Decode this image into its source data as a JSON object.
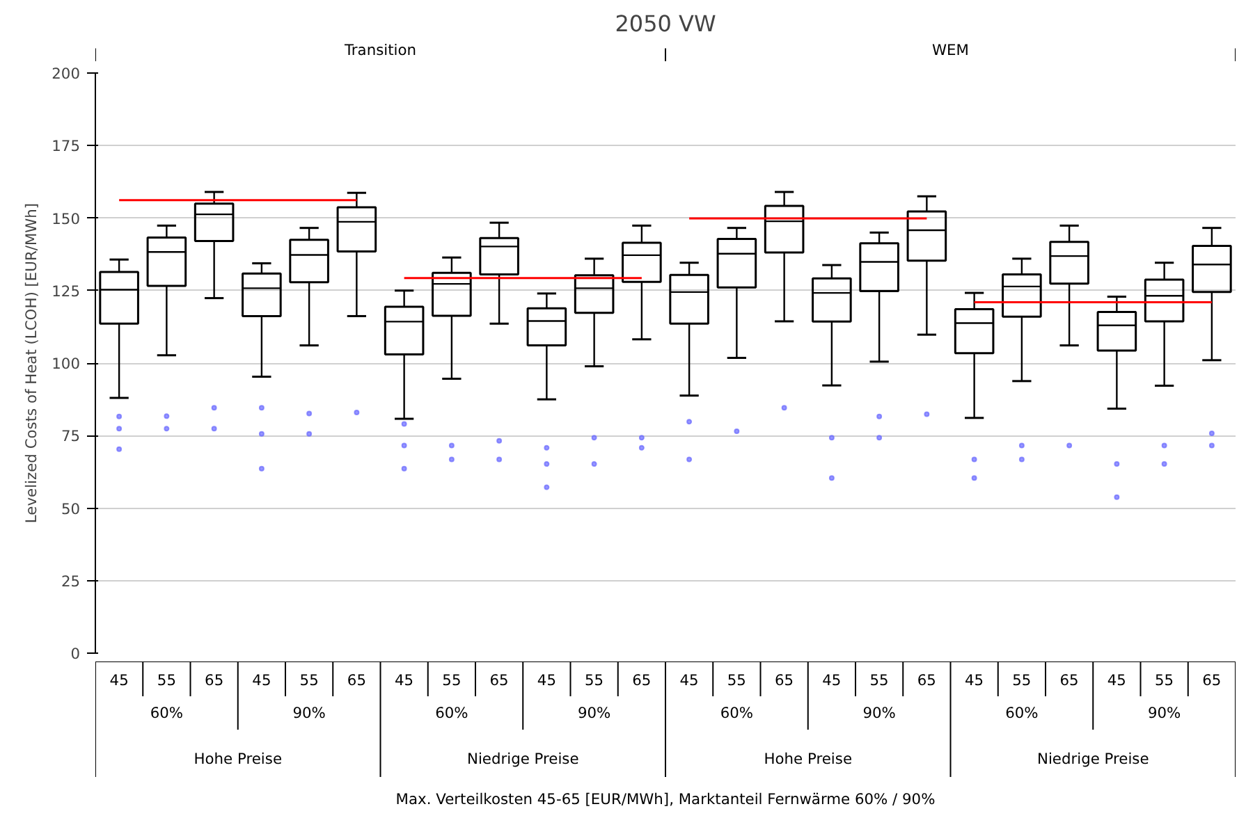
{
  "chart_data": {
    "type": "box",
    "title": "2050 VW",
    "ylabel": "Levelized Costs of Heat (LCOH) [EUR/MWh]",
    "categories": [
      "45",
      "55",
      "65",
      "45",
      "55",
      "65",
      "45",
      "55",
      "65",
      "45",
      "55",
      "65",
      "45",
      "55",
      "65",
      "45",
      "55",
      "65",
      "45",
      "55",
      "65",
      "45",
      "55",
      "65"
    ],
    "annotations": [
      "Transition",
      "WEM",
      "60%",
      "90%",
      "60%",
      "90%",
      "60%",
      "90%",
      "60%",
      "90%",
      "Hohe Preise",
      "Niedrige Preise",
      "Hohe Preise",
      "Niedrige Preise",
      "Max. Verteilkosten 45-65 [EUR/MWh], Marktanteil Fernwärme 60% / 90%"
    ],
    "ylim": [
      0,
      200
    ],
    "yticks": [
      0,
      25,
      50,
      75,
      100,
      125,
      150,
      175,
      200
    ],
    "grid": "y",
    "series": [
      {
        "color": "#000000",
        "boxes": [
          {
            "low": 88,
            "q1": 113.6,
            "median": 125.3,
            "q3": 131.4,
            "high": 135.7,
            "outliers": [
              81.6,
              77.4,
              70.3
            ]
          },
          {
            "low": 102.7,
            "q1": 126.6,
            "median": 138.3,
            "q3": 143.3,
            "high": 147.4,
            "outliers": [
              81.7,
              77.4
            ]
          },
          {
            "low": 122.4,
            "q1": 142.1,
            "median": 151.3,
            "q3": 155,
            "high": 159,
            "outliers": [
              84.6,
              77.4
            ]
          },
          {
            "low": 95.3,
            "q1": 116.2,
            "median": 125.8,
            "q3": 130.9,
            "high": 134.4,
            "outliers": [
              84.6,
              75.6,
              63.6
            ]
          },
          {
            "low": 106.1,
            "q1": 127.9,
            "median": 137.3,
            "q3": 142.5,
            "high": 146.6,
            "outliers": [
              82.6,
              75.6
            ]
          },
          {
            "low": 116.2,
            "q1": 138.5,
            "median": 148.7,
            "q3": 153.7,
            "high": 158.7,
            "outliers": [
              83
            ]
          },
          {
            "low": 80.8,
            "q1": 103,
            "median": 114.3,
            "q3": 119.4,
            "high": 125,
            "outliers": [
              79,
              71.6,
              63.6
            ]
          },
          {
            "low": 94.6,
            "q1": 116.3,
            "median": 127.3,
            "q3": 131.1,
            "high": 136.4,
            "outliers": [
              71.6,
              66.8
            ]
          },
          {
            "low": 113.6,
            "q1": 130.6,
            "median": 140.2,
            "q3": 143.1,
            "high": 148.4,
            "outliers": [
              73.2,
              66.8
            ]
          },
          {
            "low": 87.5,
            "q1": 106.1,
            "median": 114.5,
            "q3": 118.9,
            "high": 124,
            "outliers": [
              70.8,
              65.2,
              57.2
            ]
          },
          {
            "low": 98.9,
            "q1": 117.3,
            "median": 125.8,
            "q3": 130.3,
            "high": 136,
            "outliers": [
              74.3,
              65.2
            ]
          },
          {
            "low": 108.2,
            "q1": 128,
            "median": 137.2,
            "q3": 141.5,
            "high": 147.4,
            "outliers": [
              74.3,
              70.8
            ]
          },
          {
            "low": 88.8,
            "q1": 113.6,
            "median": 124.5,
            "q3": 130.4,
            "high": 134.6,
            "outliers": [
              79.8,
              66.8
            ]
          },
          {
            "low": 101.8,
            "q1": 126.1,
            "median": 137.7,
            "q3": 142.8,
            "high": 146.6,
            "outliers": [
              76.5
            ]
          },
          {
            "low": 114.4,
            "q1": 138.1,
            "median": 148.9,
            "q3": 154.2,
            "high": 159,
            "outliers": [
              84.6
            ]
          },
          {
            "low": 92.3,
            "q1": 114.3,
            "median": 124.2,
            "q3": 129.2,
            "high": 133.8,
            "outliers": [
              74.3,
              60.4
            ]
          },
          {
            "low": 100.5,
            "q1": 124.8,
            "median": 134.9,
            "q3": 141.3,
            "high": 145,
            "outliers": [
              81.6,
              74.3
            ]
          },
          {
            "low": 109.8,
            "q1": 135.3,
            "median": 145.8,
            "q3": 152.3,
            "high": 157.5,
            "outliers": [
              82.4
            ]
          },
          {
            "low": 81.1,
            "q1": 103.4,
            "median": 113.8,
            "q3": 118.6,
            "high": 124.2,
            "outliers": [
              66.8,
              60.4
            ]
          },
          {
            "low": 93.8,
            "q1": 116,
            "median": 126.4,
            "q3": 130.6,
            "high": 136,
            "outliers": [
              71.6,
              66.8
            ]
          },
          {
            "low": 106.1,
            "q1": 127.4,
            "median": 136.9,
            "q3": 141.8,
            "high": 147.4,
            "outliers": [
              71.6
            ]
          },
          {
            "low": 84.3,
            "q1": 104.3,
            "median": 113,
            "q3": 117.6,
            "high": 122.9,
            "outliers": [
              65.2,
              53.8
            ]
          },
          {
            "low": 92.2,
            "q1": 114.4,
            "median": 123.2,
            "q3": 128.8,
            "high": 134.6,
            "outliers": [
              71.6,
              65.2
            ]
          },
          {
            "low": 101,
            "q1": 124.5,
            "median": 134,
            "q3": 140.4,
            "high": 146.6,
            "outliers": [
              75.8,
              71.6
            ]
          }
        ]
      },
      {
        "type": "line",
        "color": "#ff0000",
        "values": [
          156.2,
          156.2,
          156.2,
          156.2,
          156.2,
          156.2,
          129.3,
          129.3,
          129.3,
          129.3,
          129.3,
          129.3,
          149.9,
          149.9,
          149.9,
          149.9,
          149.9,
          149.9,
          121,
          121,
          121,
          121,
          121,
          121
        ]
      }
    ]
  }
}
